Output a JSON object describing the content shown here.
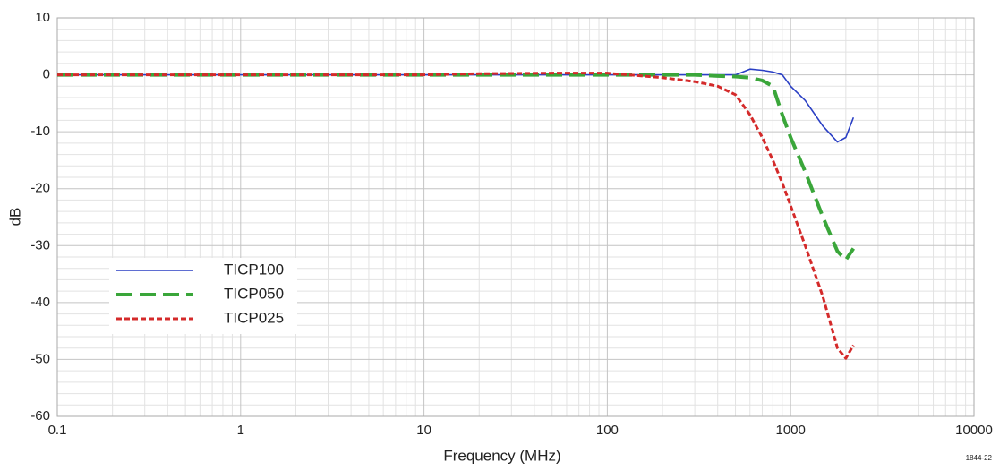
{
  "chart_data": {
    "type": "line",
    "xlabel": "Frequency (MHz)",
    "ylabel": "dB",
    "annotation": "1844-22",
    "xscale": "log",
    "xlim": [
      0.1,
      10000
    ],
    "ylim": [
      -60,
      10
    ],
    "xticks": [
      0.1,
      1,
      10,
      100,
      1000,
      10000
    ],
    "xminorticks": [
      0.2,
      0.3,
      0.4,
      0.5,
      0.6,
      0.7,
      0.8,
      0.9,
      2,
      3,
      4,
      5,
      6,
      7,
      8,
      9,
      20,
      30,
      40,
      50,
      60,
      70,
      80,
      90,
      200,
      300,
      400,
      500,
      600,
      700,
      800,
      900,
      2000,
      3000,
      4000,
      5000,
      6000,
      7000,
      8000,
      9000
    ],
    "yticks": [
      10,
      0,
      -10,
      -20,
      -30,
      -40,
      -50,
      -60
    ],
    "yminorticks": [
      8,
      6,
      4,
      2,
      -2,
      -4,
      -6,
      -8,
      -12,
      -14,
      -16,
      -18,
      -22,
      -24,
      -26,
      -28,
      -32,
      -34,
      -36,
      -38,
      -42,
      -44,
      -46,
      -48,
      -52,
      -54,
      -56,
      -58
    ],
    "grid": true,
    "legend": "lower left",
    "x": [
      0.1,
      1,
      10,
      20,
      50,
      100,
      200,
      300,
      400,
      500,
      600,
      700,
      800,
      900,
      1000,
      1200,
      1500,
      1800,
      2000,
      2200
    ],
    "series": [
      {
        "name": "TICP100",
        "color": "#2a3fc4",
        "dash": "solid",
        "values": [
          0,
          0,
          0,
          0,
          0,
          0,
          0,
          0,
          0,
          0,
          1,
          0.8,
          0.5,
          0,
          -2,
          -4.5,
          -9,
          -11.8,
          -11,
          -7.5
        ]
      },
      {
        "name": "TICP050",
        "color": "#3aa63a",
        "dash": "dashed",
        "values": [
          0,
          0,
          0,
          0,
          0,
          0,
          0,
          0,
          -0.2,
          -0.3,
          -0.5,
          -1,
          -2,
          -7,
          -11,
          -17,
          -25,
          -31,
          -32.5,
          -30.5
        ]
      },
      {
        "name": "TICP025",
        "color": "#d42a2a",
        "dash": "dotted",
        "values": [
          0,
          0,
          0,
          0.2,
          0.3,
          0.3,
          -0.5,
          -1.2,
          -2,
          -3.5,
          -7,
          -11,
          -15,
          -19,
          -23,
          -30,
          -39,
          -48,
          -49.8,
          -47.5
        ]
      }
    ]
  }
}
